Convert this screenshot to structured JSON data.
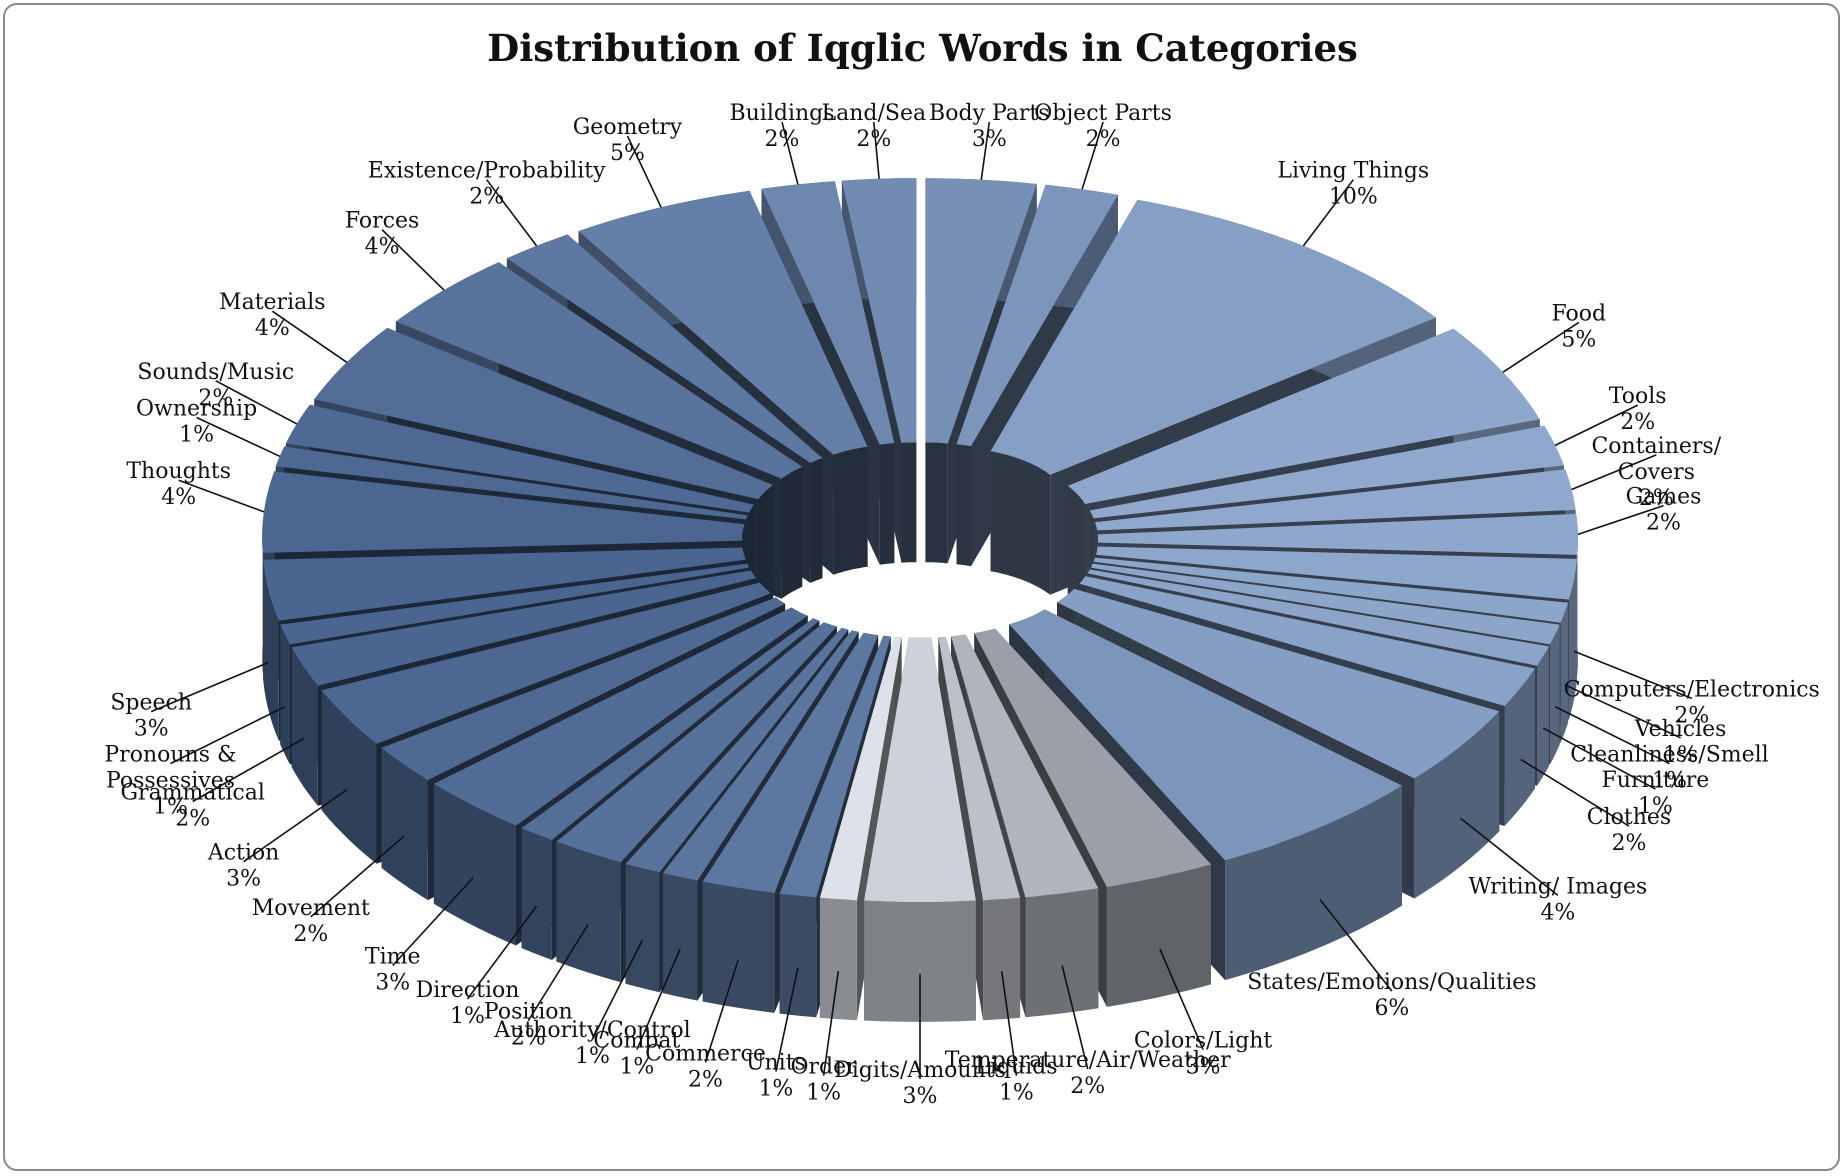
{
  "chart_data": {
    "type": "pie",
    "style": "3d-exploded-ring",
    "title": "Distribution of Iqglic Words in Categories",
    "legend": "none",
    "slices": [
      {
        "label": "Body Parts",
        "value": 3
      },
      {
        "label": "Object Parts",
        "value": 2
      },
      {
        "label": "Living Things",
        "value": 10
      },
      {
        "label": "Food",
        "value": 5
      },
      {
        "label": "Tools",
        "value": 2
      },
      {
        "label": "Containers/ Covers",
        "value": 2
      },
      {
        "label": "Games",
        "value": 2
      },
      {
        "label": "Computers/Electronics",
        "value": 2
      },
      {
        "label": "Vehicles",
        "value": 1
      },
      {
        "label": "Cleanliness/Smell",
        "value": 1
      },
      {
        "label": "Furniture",
        "value": 1
      },
      {
        "label": "Clothes",
        "value": 2
      },
      {
        "label": "Writing/ Images",
        "value": 4
      },
      {
        "label": "States/Emotions/Qualities",
        "value": 6
      },
      {
        "label": "Colors/Light",
        "value": 3
      },
      {
        "label": "Temperature/Air/Weather",
        "value": 2
      },
      {
        "label": "Liquids",
        "value": 1
      },
      {
        "label": "Digits/Amounts",
        "value": 3
      },
      {
        "label": "Order",
        "value": 1
      },
      {
        "label": "Units",
        "value": 1
      },
      {
        "label": "Commerce",
        "value": 2
      },
      {
        "label": "Combat",
        "value": 1
      },
      {
        "label": "Authority/Control",
        "value": 1
      },
      {
        "label": "Position",
        "value": 2
      },
      {
        "label": "Direction",
        "value": 1
      },
      {
        "label": "Time",
        "value": 3
      },
      {
        "label": "Movement",
        "value": 2
      },
      {
        "label": "Action",
        "value": 3
      },
      {
        "label": "Grammatical",
        "value": 2
      },
      {
        "label": "Pronouns & Possessives",
        "value": 1
      },
      {
        "label": "Speech",
        "value": 3
      },
      {
        "label": "Thoughts",
        "value": 4
      },
      {
        "label": "Ownership",
        "value": 1
      },
      {
        "label": "Sounds/Music",
        "value": 2
      },
      {
        "label": "Materials",
        "value": 4
      },
      {
        "label": "Forces",
        "value": 4
      },
      {
        "label": "Existence/Probability",
        "value": 2
      },
      {
        "label": "Geometry",
        "value": 5
      },
      {
        "label": "Buildings",
        "value": 2
      },
      {
        "label": "Land/Sea",
        "value": 2
      }
    ],
    "colors": {
      "blue_light": "#8fa8cc",
      "blue_dark": "#4a6690",
      "gray_light": "#dde1e8",
      "gray_dark": "#7a7f88"
    }
  }
}
